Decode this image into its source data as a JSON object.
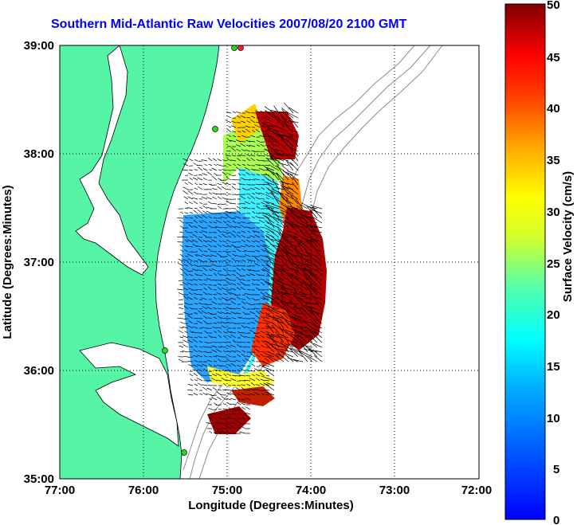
{
  "title": "Southern Mid-Atlantic Raw Velocities 2007/08/20 2100 GMT",
  "axes": {
    "xlabel": "Longitude (Degrees:Minutes)",
    "ylabel": "Latitude (Degrees:Minutes)",
    "xticks": [
      "77:00",
      "76:00",
      "75:00",
      "74:00",
      "73:00",
      "72:00"
    ],
    "yticks": [
      "39:00",
      "38:00",
      "37:00",
      "36:00",
      "35:00"
    ],
    "xlim": [
      -77,
      -72
    ],
    "ylim": [
      35,
      39
    ]
  },
  "colorbar": {
    "label": "Surface Velocity (cm/s)",
    "ticks": [
      "50",
      "45",
      "40",
      "35",
      "30",
      "25",
      "20",
      "15",
      "10",
      "5",
      "0"
    ],
    "range": [
      0,
      50
    ]
  },
  "colors": {
    "land": "#55f5a5",
    "coast": "#000000",
    "bathymetry": "#8c8c8c",
    "title": "#0000ff",
    "site_marker": "#22dd22",
    "site_marker_alt": "#ff2020"
  }
}
